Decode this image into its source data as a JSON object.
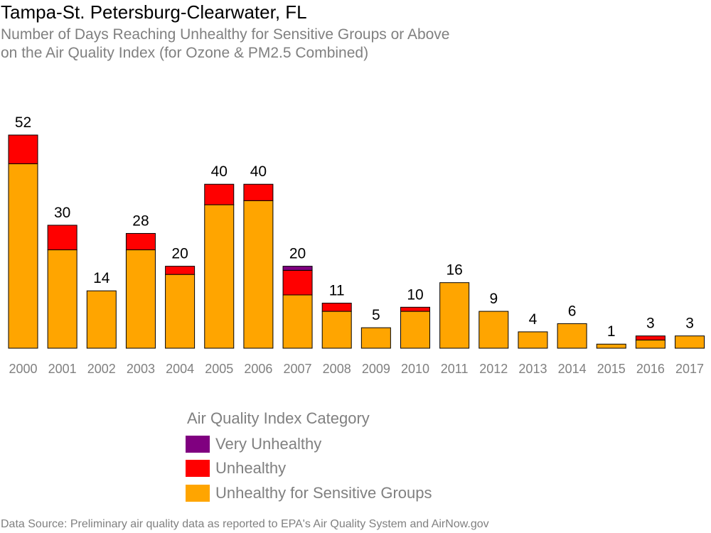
{
  "title": "Tampa-St. Petersburg-Clearwater, FL",
  "subtitle_line1": "Number of Days Reaching Unhealthy for Sensitive Groups or Above",
  "subtitle_line2": "on the Air Quality Index (for Ozone & PM2.5 Combined)",
  "legend": {
    "title": "Air Quality Index Category",
    "items": [
      {
        "label": "Very Unhealthy",
        "color": "#800080"
      },
      {
        "label": "Unhealthy",
        "color": "#ff0000"
      },
      {
        "label": "Unhealthy for Sensitive Groups",
        "color": "#ffa500"
      }
    ]
  },
  "source": "Data Source: Preliminary air quality data as reported to EPA's Air Quality System and AirNow.gov",
  "chart_data": {
    "type": "bar",
    "stacked": true,
    "categories": [
      "2000",
      "2001",
      "2002",
      "2003",
      "2004",
      "2005",
      "2006",
      "2007",
      "2008",
      "2009",
      "2010",
      "2011",
      "2012",
      "2013",
      "2014",
      "2015",
      "2016",
      "2017"
    ],
    "series": [
      {
        "name": "Unhealthy for Sensitive Groups",
        "color": "#ffa500",
        "values": [
          45,
          24,
          14,
          24,
          18,
          35,
          36,
          13,
          9,
          5,
          9,
          16,
          9,
          4,
          6,
          1,
          2,
          3
        ]
      },
      {
        "name": "Unhealthy",
        "color": "#ff0000",
        "values": [
          7,
          6,
          0,
          4,
          2,
          5,
          4,
          6,
          2,
          0,
          1,
          0,
          0,
          0,
          0,
          0,
          1,
          0
        ]
      },
      {
        "name": "Very Unhealthy",
        "color": "#800080",
        "values": [
          0,
          0,
          0,
          0,
          0,
          0,
          0,
          1,
          0,
          0,
          0,
          0,
          0,
          0,
          0,
          0,
          0,
          0
        ]
      }
    ],
    "totals": [
      52,
      30,
      14,
      28,
      20,
      40,
      40,
      20,
      11,
      5,
      10,
      16,
      9,
      4,
      6,
      1,
      3,
      3
    ],
    "ylim": [
      0,
      52
    ],
    "grid": false,
    "legend_position": "bottom"
  }
}
